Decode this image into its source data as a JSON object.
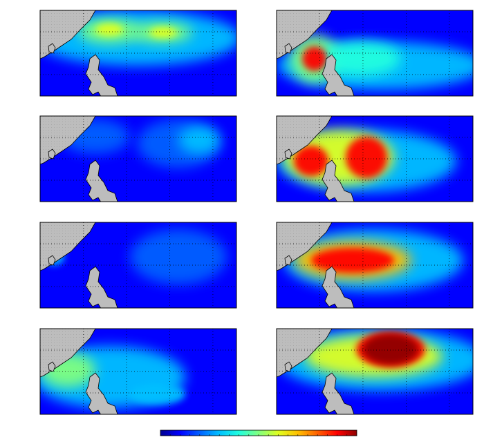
{
  "colorbar": {
    "colors": [
      "#00008f",
      "#0000ff",
      "#0060ff",
      "#00c0ff",
      "#20ffdf",
      "#80ff80",
      "#dfff20",
      "#ffc000",
      "#ff6000",
      "#ff0000",
      "#8f0000"
    ]
  }
}
